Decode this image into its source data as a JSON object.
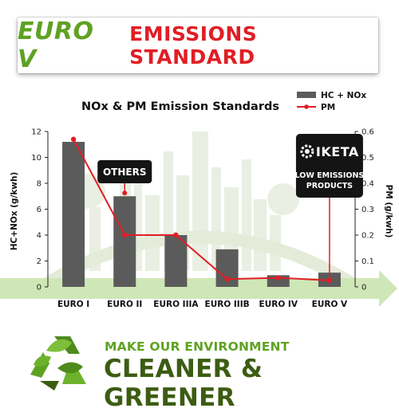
{
  "banner": {
    "title_euro": "EURO V",
    "title_rest": "EMISSIONS STANDARD"
  },
  "footer": {
    "line1": "MAKE OUR ENVIRONMENT",
    "line2": "CLEANER & GREENER"
  },
  "icons": {
    "recycle": "recycle-leaves-icon",
    "logo": "iketa-gear-logo-icon"
  },
  "colors": {
    "bar": "#5b5b5b",
    "line": "#e01e24",
    "green": "#5fa223",
    "dark_green": "#3c5c12"
  },
  "chart_data": {
    "type": "bar+line",
    "title": "NOx & PM Emission Standards",
    "categories": [
      "EURO I",
      "EURO II",
      "EURO IIIA",
      "EURO IIIB",
      "EURO IV",
      "EURO V"
    ],
    "series": [
      {
        "name": "HC + NOx",
        "type": "bar",
        "axis": "left",
        "values": [
          11.2,
          7.0,
          4.0,
          2.9,
          0.9,
          1.1
        ]
      },
      {
        "name": "PM",
        "type": "line",
        "axis": "right",
        "values": [
          0.57,
          0.2,
          0.2,
          0.03,
          0.035,
          0.025
        ]
      }
    ],
    "ylabel": "HC+NOx (g/kwh)",
    "y2label": "PM (g/kwh)",
    "ylim": [
      0,
      12
    ],
    "y2lim": [
      0,
      0.6
    ],
    "yticks": [
      "0",
      "2",
      "4",
      "6",
      "8",
      "10",
      "12"
    ],
    "y2ticks": [
      "0",
      "0.1",
      "0.2",
      "0.3",
      "0.4",
      "0.5",
      "0.6"
    ],
    "legend_position": "top-right",
    "annotations": [
      {
        "text": "OTHERS",
        "category": "EURO II"
      },
      {
        "logo": "IKETA",
        "text": [
          "LOW EMISSIONS",
          "PRODUCTS"
        ],
        "category": "EURO V"
      }
    ]
  }
}
